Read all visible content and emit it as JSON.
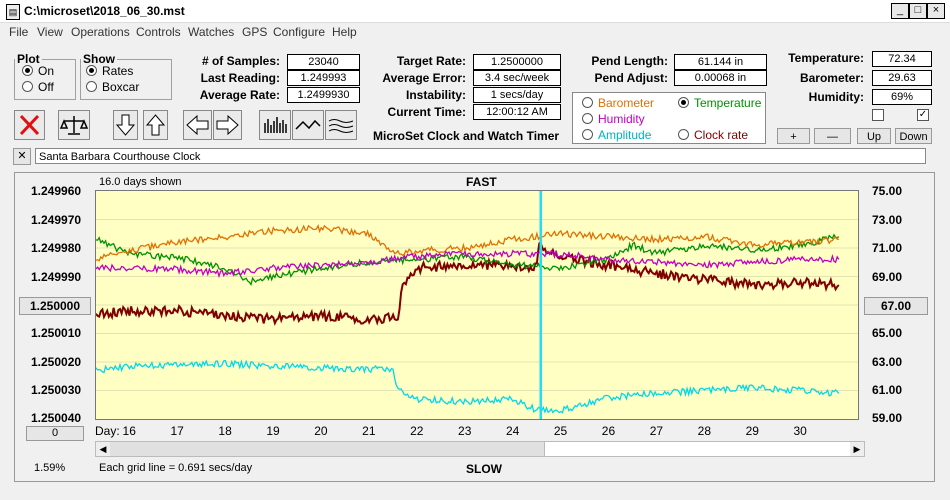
{
  "window": {
    "title": "C:\\microset\\2018_06_30.mst",
    "minimize": "_",
    "maximize": "□",
    "close": "×"
  },
  "menu": [
    "File",
    "View",
    "Operations",
    "Controls",
    "Watches",
    "GPS",
    "Configure",
    "Help"
  ],
  "plot_group": {
    "legend": "Plot",
    "options": [
      "On",
      "Off"
    ],
    "selected": "On"
  },
  "show_group": {
    "legend": "Show",
    "options": [
      "Rates",
      "Boxcar"
    ],
    "selected": "Rates"
  },
  "stats": {
    "samples_label": "# of Samples:",
    "samples": "23040",
    "last_reading_label": "Last Reading:",
    "last_reading": "1.249993",
    "average_rate_label": "Average Rate:",
    "average_rate": "1.2499930",
    "target_rate_label": "Target Rate:",
    "target_rate": "1.2500000",
    "average_error_label": "Average Error:",
    "average_error": "3.4 sec/week",
    "instability_label": "Instability:",
    "instability": "1 secs/day",
    "current_time_label": "Current Time:",
    "current_time": "12:00:12 AM",
    "pend_length_label": "Pend Length:",
    "pend_length": "61.144 in",
    "pend_adjust_label": "Pend Adjust:",
    "pend_adjust": "0.00068 in",
    "temperature_label": "Temperature:",
    "temperature": "72.34",
    "barometer_label": "Barometer:",
    "barometer": "29.63",
    "humidity_label": "Humidity:",
    "humidity": "69%"
  },
  "app_caption": "MicroSet Clock and Watch Timer",
  "overlay": {
    "options": [
      {
        "label": "Barometer",
        "color": "#e07000",
        "selected": false
      },
      {
        "label": "Temperature",
        "color": "#009000",
        "selected": true
      },
      {
        "label": "Humidity",
        "color": "#c000c0",
        "selected": false
      },
      {
        "label": "Amplitude",
        "color": "#00b0c0",
        "selected": false
      },
      {
        "label": "Clock rate",
        "color": "#800000",
        "selected": false
      }
    ]
  },
  "scale_buttons": {
    "plus": "+",
    "minus": "—",
    "up": "Up",
    "down": "Down"
  },
  "clock_name": "Santa Barbara Courthouse Clock",
  "clear_name_button": "✕",
  "chart": {
    "days_shown": "16.0 days shown",
    "top_label": "FAST",
    "bottom_label": "SLOW",
    "grid_note": "Each grid line = 0.691 secs/day",
    "percent": "1.59%",
    "day_label": "Day:",
    "left_center_button": "1.250000",
    "right_center_button": "67.00",
    "left_bottom_button": "0"
  },
  "chart_data": {
    "type": "line",
    "title": "",
    "y_left_ticks": [
      "1.249960",
      "1.249970",
      "1.249980",
      "1.249990",
      "1.250000",
      "1.250010",
      "1.250020",
      "1.250030",
      "1.250040"
    ],
    "y_right_ticks": [
      "75.00",
      "73.00",
      "71.00",
      "69.00",
      "67.00",
      "65.00",
      "63.00",
      "61.00",
      "59.00"
    ],
    "x_ticks": [
      "16",
      "17",
      "18",
      "19",
      "20",
      "21",
      "22",
      "23",
      "24",
      "25",
      "26",
      "27",
      "28",
      "29",
      "30"
    ],
    "x_range": [
      15.3,
      31.2
    ],
    "y_left_range": [
      1.24996,
      1.25004
    ],
    "y_left_inverted": true,
    "y_right_range": [
      59,
      75
    ],
    "grid": true,
    "series": [
      {
        "name": "Clock rate",
        "color": "#800000",
        "x": [
          15.3,
          16,
          17,
          18,
          19,
          20,
          21,
          21.6,
          21.7,
          22,
          23,
          24,
          24.5,
          24.55,
          24.6,
          25,
          26,
          27,
          28,
          29,
          30,
          30.8
        ],
        "y": [
          1.250003,
          1.250002,
          1.250002,
          1.250004,
          1.250005,
          1.250004,
          1.250005,
          1.250004,
          1.249994,
          1.249987,
          1.249986,
          1.249986,
          1.249987,
          1.249978,
          1.24998,
          1.249983,
          1.249986,
          1.249989,
          1.249991,
          1.249993,
          1.249992,
          1.249993
        ]
      },
      {
        "name": "Temperature",
        "color": "#009000",
        "x": [
          15.3,
          16,
          17,
          18,
          18.5,
          19,
          20,
          21,
          22,
          23,
          24,
          25,
          26,
          26.5,
          27,
          28,
          29,
          30,
          30.8
        ],
        "y": [
          71.6,
          70.6,
          70.3,
          69.6,
          68.6,
          69.0,
          69.6,
          70.0,
          70.2,
          70.4,
          69.8,
          69.6,
          70.2,
          71.2,
          70.6,
          71.2,
          70.8,
          71.2,
          71.8
        ]
      },
      {
        "name": "Barometer",
        "color": "#e07000",
        "x": [
          15.3,
          16,
          17,
          18,
          19,
          20,
          21,
          21.5,
          22,
          23,
          24,
          24.5,
          25,
          26,
          27,
          28,
          29,
          30,
          30.8
        ],
        "y": [
          70.2,
          70.8,
          71.4,
          71.8,
          72.2,
          72.4,
          72.0,
          70.6,
          70.8,
          71.0,
          71.6,
          71.8,
          72.0,
          71.8,
          71.6,
          71.8,
          71.2,
          71.4,
          71.6
        ]
      },
      {
        "name": "Humidity",
        "color": "#c000c0",
        "x": [
          15.3,
          16,
          17,
          18,
          19,
          20,
          21,
          22,
          23,
          24,
          25,
          26,
          27,
          28,
          29,
          30,
          30.8
        ],
        "y": [
          69.6,
          69.6,
          69.5,
          69.2,
          69.6,
          69.8,
          70.0,
          70.4,
          70.6,
          70.6,
          70.6,
          70.2,
          70.0,
          69.8,
          70.0,
          70.2,
          70.2
        ]
      },
      {
        "name": "Amplitude",
        "color": "#00d8e8",
        "x": [
          15.3,
          16,
          17,
          18,
          19,
          20,
          21,
          21.5,
          21.6,
          22,
          23,
          24,
          24.5,
          25,
          26,
          27,
          28,
          29,
          30,
          30.8
        ],
        "y": [
          62.4,
          62.7,
          62.8,
          62.9,
          62.7,
          62.6,
          62.5,
          62.5,
          61.0,
          60.4,
          60.2,
          60.4,
          59.6,
          59.6,
          60.5,
          60.8,
          61.0,
          61.2,
          61.0,
          60.8
        ]
      }
    ],
    "cursor_day": 24.58
  }
}
